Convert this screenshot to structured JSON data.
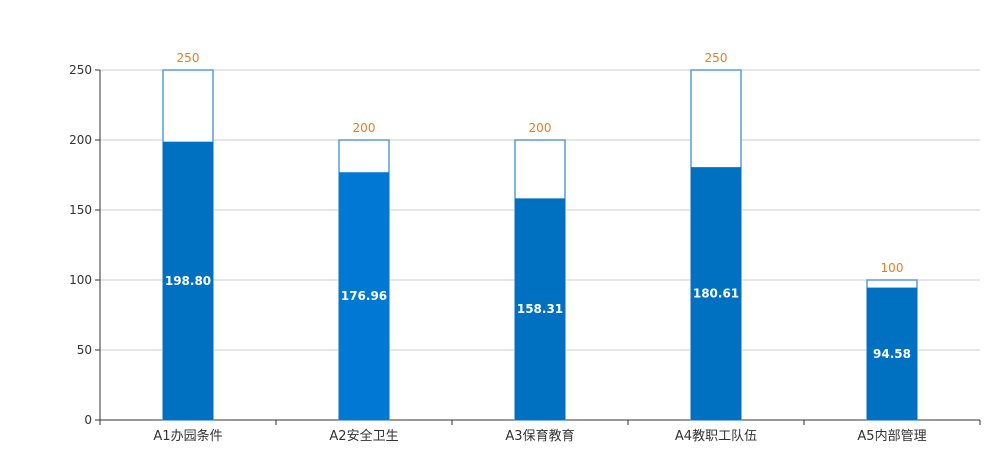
{
  "chart_data": {
    "type": "bar",
    "categories": [
      "A1办园条件",
      "A2安全卫生",
      "A3保育教育",
      "A4教职工队伍",
      "A5内部管理"
    ],
    "series": [
      {
        "values": [
          198.8,
          176.96,
          158.31,
          180.61,
          94.58
        ],
        "labels": [
          "198.80",
          "176.96",
          "158.31",
          "180.61",
          "94.58"
        ]
      },
      {
        "values": [
          250,
          200,
          200,
          250,
          100
        ],
        "labels": [
          "250",
          "200",
          "200",
          "250",
          "100"
        ]
      }
    ],
    "bar_colors": [
      "#0070c0",
      "#0078d4",
      "#0070c0",
      "#0070c0",
      "#0070c0"
    ],
    "outline_color": "#5b9bd5",
    "target_label_color": "#e67e22",
    "ylim": [
      0,
      250
    ],
    "yticks": [
      0,
      50,
      100,
      150,
      200,
      250
    ],
    "yticks_labels": [
      "0",
      "50",
      "100",
      "150",
      "200",
      "250"
    ],
    "grid": true,
    "title": "",
    "xlabel": "",
    "ylabel": ""
  }
}
